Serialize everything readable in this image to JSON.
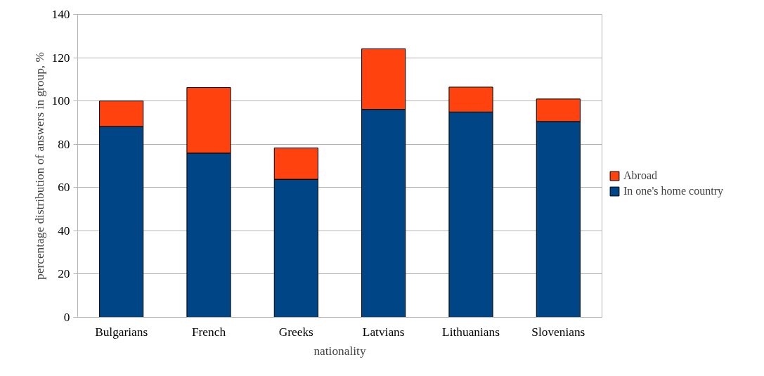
{
  "chart_data": {
    "type": "bar",
    "stacked": true,
    "xlabel": "nationality",
    "ylabel": "percentage distribution of answers in group, %",
    "categories": [
      "Bulgarians",
      "French",
      "Greeks",
      "Latvians",
      "Lithuanians",
      "Slovenians"
    ],
    "series": [
      {
        "name": "In one's home country",
        "color": "#004586",
        "values": [
          88.2,
          75.9,
          63.8,
          96.1,
          94.9,
          90.5
        ]
      },
      {
        "name": "Abroad",
        "color": "#ff420e",
        "values": [
          11.8,
          30.3,
          14.5,
          28.0,
          11.5,
          10.4
        ]
      }
    ],
    "ylim": [
      0,
      140
    ],
    "yticks": [
      0,
      20,
      40,
      60,
      80,
      100,
      120,
      140
    ],
    "grid": "y",
    "legend": "right"
  }
}
